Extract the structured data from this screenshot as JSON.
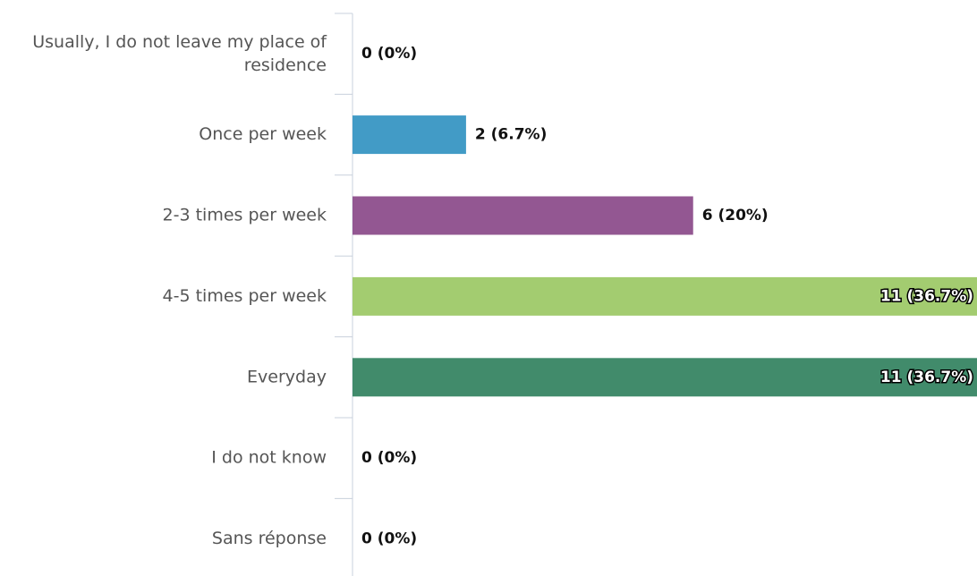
{
  "chart_data": {
    "type": "bar",
    "orientation": "horizontal",
    "categories": [
      "Usually, I do not leave my place of residence",
      "Once per week",
      "2-3 times per week",
      "4-5 times per week",
      "Everyday",
      "I do not know",
      "Sans réponse"
    ],
    "values": [
      0,
      2,
      6,
      11,
      11,
      0,
      0
    ],
    "value_labels": [
      "0 (0%)",
      "2 (6.7%)",
      "6 (20%)",
      "11 (36.7%)",
      "11 (36.7%)",
      "0 (0%)",
      "0 (0%)"
    ],
    "colors": [
      null,
      "#429bc6",
      "#935792",
      "#a3cc70",
      "#418b6b",
      null,
      null
    ]
  }
}
